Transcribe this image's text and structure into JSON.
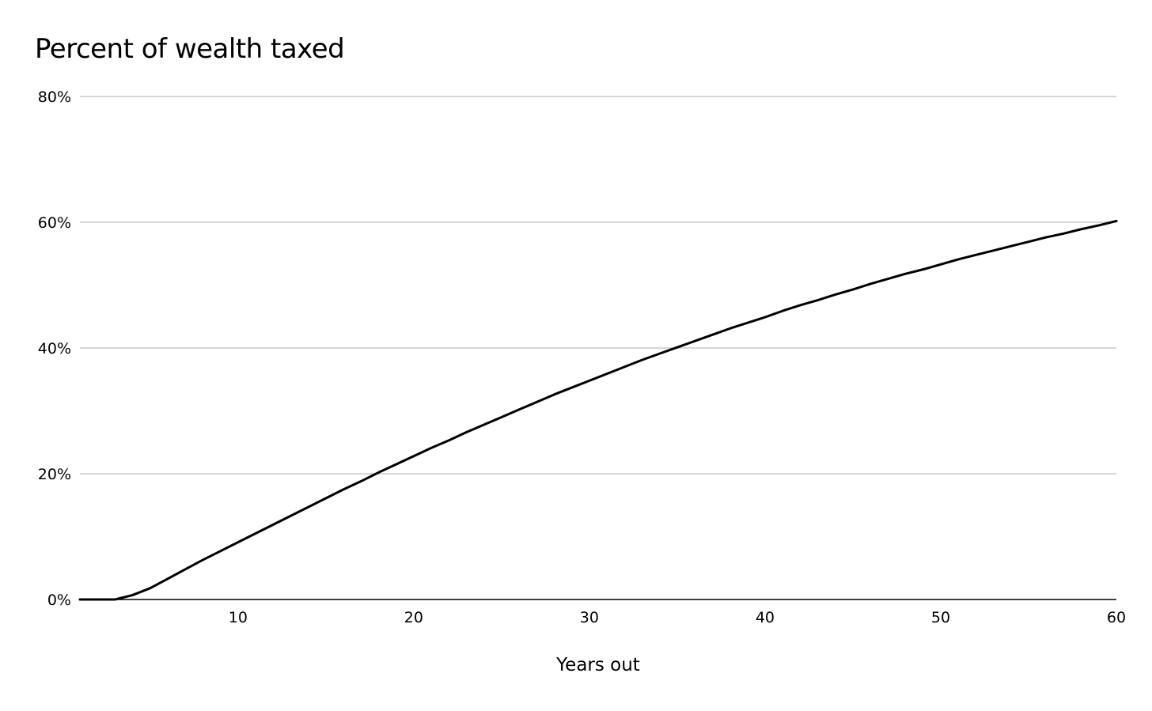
{
  "chart_data": {
    "type": "line",
    "title": "Percent of wealth taxed",
    "xlabel": "Years out",
    "ylabel": "",
    "xlim": [
      1,
      60
    ],
    "ylim": [
      0,
      80
    ],
    "x_ticks": [
      10,
      20,
      30,
      40,
      50,
      60
    ],
    "y_ticks": [
      0,
      20,
      40,
      60,
      80
    ],
    "y_tick_labels": [
      "0%",
      "20%",
      "40%",
      "60%",
      "80%"
    ],
    "grid": true,
    "legend": "none",
    "series": [
      {
        "color": "#000000",
        "x": [
          1,
          2,
          3,
          4,
          5,
          6,
          7,
          8,
          9,
          10,
          11,
          12,
          13,
          14,
          15,
          16,
          17,
          18,
          19,
          20,
          21,
          22,
          23,
          24,
          25,
          26,
          27,
          28,
          29,
          30,
          31,
          32,
          33,
          34,
          35,
          36,
          37,
          38,
          39,
          40,
          41,
          42,
          43,
          44,
          45,
          46,
          47,
          48,
          49,
          50,
          51,
          52,
          53,
          54,
          55,
          56,
          57,
          58,
          59,
          60
        ],
        "y": [
          0,
          0,
          0,
          0.7,
          1.8,
          3.3,
          4.8,
          6.3,
          7.7,
          9.1,
          10.5,
          11.9,
          13.3,
          14.7,
          16.1,
          17.5,
          18.8,
          20.2,
          21.5,
          22.8,
          24.1,
          25.3,
          26.6,
          27.8,
          29.0,
          30.2,
          31.4,
          32.6,
          33.7,
          34.8,
          35.9,
          37.0,
          38.1,
          39.1,
          40.1,
          41.1,
          42.1,
          43.1,
          44.0,
          44.9,
          45.9,
          46.8,
          47.6,
          48.5,
          49.3,
          50.2,
          51.0,
          51.8,
          52.5,
          53.3,
          54.1,
          54.8,
          55.5,
          56.2,
          56.9,
          57.6,
          58.2,
          58.9,
          59.5,
          60.2
        ]
      }
    ]
  }
}
